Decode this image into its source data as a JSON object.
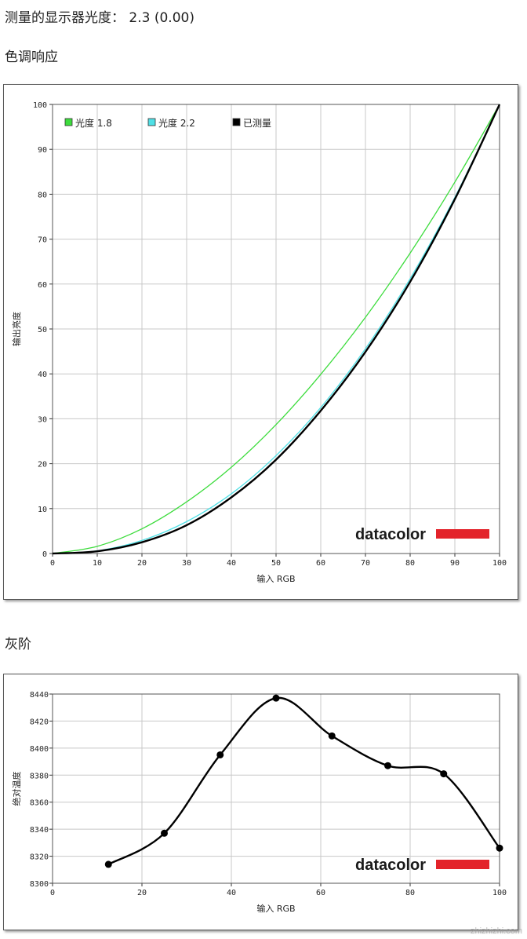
{
  "header": {
    "gamma_line": "测量的显示器光度： 2.3 (0.00)",
    "tone_title": "色调响应",
    "gray_title": "灰阶"
  },
  "brand": {
    "logo_text": "datacolor",
    "logo_bar_color": "#e3232a"
  },
  "watermark": "zhizhizhi.com",
  "colors": {
    "gamma18": "#3ddc3d",
    "gamma22": "#4fe0e6",
    "measured": "#000000",
    "grid": "#c8c8c8"
  },
  "chart_data": [
    {
      "type": "line",
      "title": "色调响应",
      "xlabel": "输入 RGB",
      "ylabel": "输出亮度",
      "xlim": [
        0,
        100
      ],
      "ylim": [
        0,
        100
      ],
      "x_ticks": [
        "0",
        "10",
        "20",
        "30",
        "40",
        "50",
        "60",
        "70",
        "80",
        "90",
        "100"
      ],
      "y_ticks": [
        "0",
        "10",
        "20",
        "30",
        "40",
        "50",
        "60",
        "70",
        "80",
        "90",
        "100"
      ],
      "grid": true,
      "legend_position": "top-left",
      "series": [
        {
          "name": "光度 1.8",
          "legend_label": "光度 1.8",
          "color": "#3ddc3d",
          "x": [
            0,
            10,
            20,
            30,
            40,
            50,
            60,
            70,
            80,
            90,
            100
          ],
          "y": [
            0,
            1.6,
            5.5,
            11.5,
            19.2,
            28.7,
            39.9,
            52.6,
            66.9,
            82.7,
            100
          ]
        },
        {
          "name": "光度 2.2",
          "legend_label": "光度 2.2",
          "color": "#4fe0e6",
          "x": [
            0,
            10,
            20,
            30,
            40,
            50,
            60,
            70,
            80,
            90,
            100
          ],
          "y": [
            0,
            0.6,
            2.9,
            7.1,
            13.3,
            21.8,
            32.5,
            45.6,
            61.2,
            79.3,
            100
          ]
        },
        {
          "name": "已测量",
          "legend_label": "已测量",
          "color": "#000000",
          "x": [
            0,
            10,
            20,
            30,
            40,
            50,
            60,
            70,
            80,
            90,
            100
          ],
          "y": [
            0,
            0.5,
            2.5,
            6.3,
            12.5,
            20.9,
            31.8,
            44.9,
            60.5,
            78.9,
            100
          ]
        }
      ]
    },
    {
      "type": "line",
      "title": "灰阶",
      "xlabel": "输入 RGB",
      "ylabel": "绝对温度",
      "xlim": [
        0,
        100
      ],
      "ylim": [
        8300,
        8440
      ],
      "x_ticks": [
        "0",
        "20",
        "40",
        "60",
        "80",
        "100"
      ],
      "y_ticks": [
        "8300",
        "8320",
        "8340",
        "8360",
        "8380",
        "8400",
        "8420",
        "8440"
      ],
      "grid": true,
      "series": [
        {
          "name": "",
          "color": "#000000",
          "x": [
            12.5,
            25,
            37.5,
            50,
            62.5,
            75,
            87.5,
            100
          ],
          "y": [
            8314,
            8337,
            8395,
            8437,
            8409,
            8387,
            8381,
            8326
          ]
        }
      ]
    }
  ]
}
